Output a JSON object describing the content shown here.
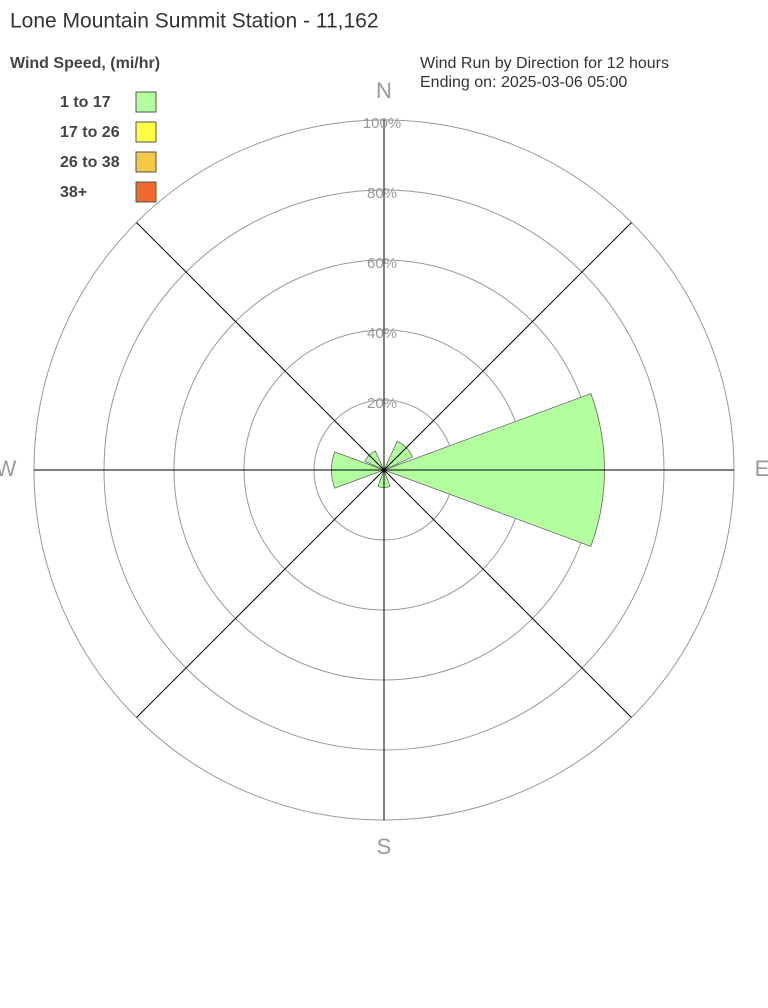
{
  "chart_data": {
    "type": "windrose",
    "title": "Lone Mountain Summit Station - 11,162",
    "subtitle": "Wind Run by Direction for 12 hours",
    "subtitle2": "Ending on: 2025-03-06 05:00",
    "legend_title": "Wind Speed, (mi/hr)",
    "categories": [
      "N",
      null,
      "E",
      null,
      "S",
      null,
      "W",
      null
    ],
    "series": [
      {
        "name": "1 to 17",
        "color": "#b3ffa0",
        "values": [
          0,
          9,
          63,
          0,
          5,
          0,
          15,
          6
        ]
      },
      {
        "name": "17 to 26",
        "color": "#ffff44",
        "values": [
          0,
          0,
          0,
          0,
          0,
          0,
          0,
          0
        ]
      },
      {
        "name": "26 to 38",
        "color": "#f7c948",
        "values": [
          0,
          0,
          0,
          0,
          0,
          0,
          0,
          0
        ]
      },
      {
        "name": "38+",
        "color": "#ee6a2c",
        "values": [
          0,
          0,
          0,
          0,
          0,
          0,
          0,
          0
        ]
      }
    ],
    "rlim": [
      0,
      100
    ],
    "rticks": [
      {
        "value": 20,
        "label": "20%"
      },
      {
        "value": 40,
        "label": "40%"
      },
      {
        "value": 60,
        "label": "60%"
      },
      {
        "value": 80,
        "label": "80%"
      },
      {
        "value": 100,
        "label": "100%"
      }
    ],
    "grid": true
  }
}
